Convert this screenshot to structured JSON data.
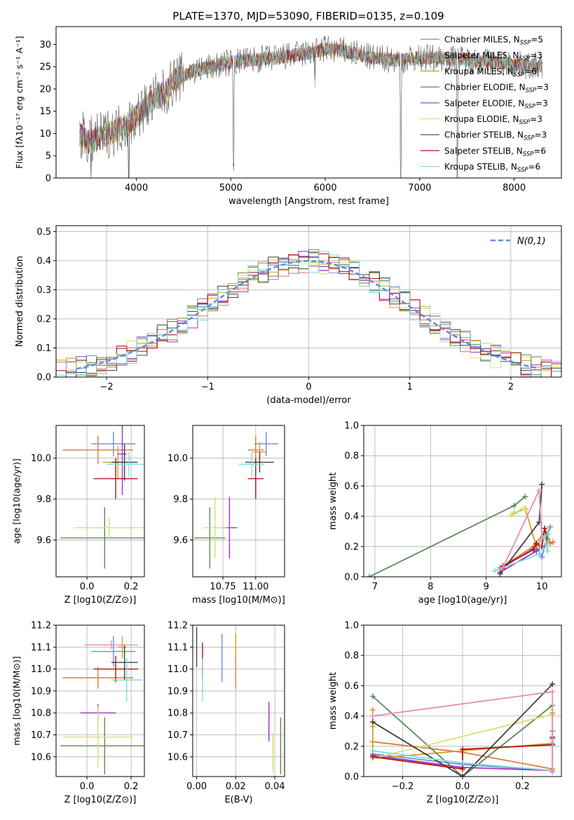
{
  "figure": {
    "title": "PLATE=1370, MJD=53090, FIBERID=0135, z=0.109"
  },
  "legend_entries": [
    {
      "base": "Chabrier MILES, N",
      "sub": "SSP",
      "tail": "=5",
      "color": "#6b8fd6"
    },
    {
      "base": "Salpeter MILES, N",
      "sub": "SSP",
      "tail": "=3",
      "color": "#e07b39"
    },
    {
      "base": "Kroupa MILES, N",
      "sub": "SSP",
      "tail": "=6",
      "color": "#c9a227"
    },
    {
      "base": "Chabrier ELODIE, N",
      "sub": "SSP",
      "tail": "=3",
      "color": "#5a8a5a"
    },
    {
      "base": "Salpeter ELODIE, N",
      "sub": "SSP",
      "tail": "=3",
      "color": "#a030c0"
    },
    {
      "base": "Kroupa ELODIE, N",
      "sub": "SSP",
      "tail": "=3",
      "color": "#d8e070"
    },
    {
      "base": "Chabrier STELIB, N",
      "sub": "SSP",
      "tail": "=3",
      "color": "#404040"
    },
    {
      "base": "Salpeter STELIB, N",
      "sub": "SSP",
      "tail": "=6",
      "color": "#b01010"
    },
    {
      "base": "Kroupa STELIB, N",
      "sub": "SSP",
      "tail": "=6",
      "color": "#7fdcdc"
    }
  ],
  "chart_data": [
    {
      "id": "spectrum",
      "type": "line",
      "xlabel": "wavelength [Angstrom, rest frame]",
      "ylabel": "Flux [fλ10⁻¹⁷ erg cm⁻² s⁻¹ A⁻¹]",
      "xlim": [
        3150,
        8500
      ],
      "ylim": [
        0,
        34
      ],
      "xticks": [
        4000,
        5000,
        6000,
        7000,
        8000
      ],
      "yticks": [
        0,
        5,
        10,
        15,
        20,
        25,
        30
      ],
      "continuum": {
        "x": [
          3400,
          3500,
          3700,
          3900,
          4000,
          4100,
          4200,
          4300,
          4400,
          4600,
          4800,
          5000,
          5200,
          5500,
          5800,
          6000,
          6200,
          6500,
          6800,
          7000,
          7200,
          7500,
          7800,
          8000,
          8300
        ],
        "y": [
          10,
          8,
          10,
          12,
          14,
          16,
          18,
          19,
          22,
          24,
          25,
          26,
          26.5,
          27,
          28,
          29,
          28.5,
          27,
          26.5,
          27,
          27,
          26.5,
          26,
          25.5,
          25
        ]
      },
      "absorption_features": [
        {
          "x": 3520,
          "depth": 10
        },
        {
          "x": 3920,
          "depth": 12
        },
        {
          "x": 5030,
          "depth": 22
        },
        {
          "x": 5890,
          "depth": 8
        },
        {
          "x": 6800,
          "depth": 27
        },
        {
          "x": 7400,
          "depth": 27
        }
      ]
    },
    {
      "id": "residuals",
      "type": "histogram",
      "xlabel": "(data-model)/error",
      "ylabel": "Normed distribution",
      "xlim": [
        -2.5,
        2.5
      ],
      "ylim": [
        0,
        0.52
      ],
      "xticks": [
        -2,
        -1,
        0,
        1,
        2
      ],
      "xtick_labels": [
        "−2",
        "−1",
        "0",
        "1",
        "2"
      ],
      "yticks": [
        0.0,
        0.1,
        0.2,
        0.3,
        0.4,
        0.5
      ],
      "ytick_labels": [
        "0.0",
        "0.1",
        "0.2",
        "0.3",
        "0.4",
        "0.5"
      ],
      "reference_curve": {
        "label": "N(0,1)",
        "color": "#5b8fd6",
        "style": "dashed"
      },
      "bin_width": 0.1
    },
    {
      "id": "age_vs_Z",
      "type": "errorbar",
      "xlabel": "Z [log10(Z/Z⊙)]",
      "ylabel": "age [log10(age/yr)]",
      "xlim": [
        -0.14,
        0.26
      ],
      "ylim": [
        9.42,
        10.16
      ],
      "xticks": [
        0.0,
        0.2
      ],
      "xtick_labels": [
        "0.0",
        "0.2"
      ],
      "yticks": [
        9.6,
        9.8,
        10.0
      ],
      "ytick_labels": [
        "9.6",
        "9.8",
        "10.0"
      ],
      "points": [
        {
          "x": 0.12,
          "y": 10.07,
          "xerr": 0.1,
          "yerr": 0.06,
          "c": 0
        },
        {
          "x": 0.05,
          "y": 10.04,
          "xerr": 0.16,
          "yerr": 0.07,
          "c": 1
        },
        {
          "x": 0.14,
          "y": 9.98,
          "xerr": 0.07,
          "yerr": 0.08,
          "c": 2
        },
        {
          "x": 0.08,
          "y": 9.61,
          "xerr": 0.2,
          "yerr": 0.15,
          "c": 3
        },
        {
          "x": 0.16,
          "y": 10.02,
          "xerr": 0.02,
          "yerr": 0.2,
          "c": 4
        },
        {
          "x": 0.1,
          "y": 9.66,
          "xerr": 0.16,
          "yerr": 0.05,
          "c": 5
        },
        {
          "x": 0.17,
          "y": 9.98,
          "xerr": 0.06,
          "yerr": 0.09,
          "c": 6
        },
        {
          "x": 0.13,
          "y": 9.9,
          "xerr": 0.1,
          "yerr": 0.1,
          "c": 7
        },
        {
          "x": 0.19,
          "y": 9.97,
          "xerr": 0.1,
          "yerr": 0.06,
          "c": 8
        }
      ]
    },
    {
      "id": "age_vs_mass",
      "type": "errorbar",
      "xlabel": "mass [log10(M/M⊙)]",
      "ylabel": "",
      "xlim": [
        10.52,
        11.22
      ],
      "ylim": [
        9.42,
        10.16
      ],
      "xticks": [
        10.75,
        11.0
      ],
      "xtick_labels": [
        "10.75",
        "11.00"
      ],
      "yticks": [
        9.6,
        9.8,
        10.0
      ],
      "ytick_labels": [
        "9.6",
        "9.8",
        "10.0"
      ],
      "points": [
        {
          "x": 11.08,
          "y": 10.07,
          "xerr": 0.09,
          "yerr": 0.06,
          "c": 0
        },
        {
          "x": 11.0,
          "y": 10.04,
          "xerr": 0.06,
          "yerr": 0.07,
          "c": 1
        },
        {
          "x": 11.03,
          "y": 10.03,
          "xerr": 0.05,
          "yerr": 0.05,
          "c": 2
        },
        {
          "x": 10.65,
          "y": 9.61,
          "xerr": 0.12,
          "yerr": 0.15,
          "c": 3
        },
        {
          "x": 10.8,
          "y": 9.66,
          "xerr": 0.06,
          "yerr": 0.15,
          "c": 4
        },
        {
          "x": 10.69,
          "y": 9.66,
          "xerr": 0.09,
          "yerr": 0.15,
          "c": 5
        },
        {
          "x": 11.03,
          "y": 9.98,
          "xerr": 0.11,
          "yerr": 0.05,
          "c": 6
        },
        {
          "x": 11.0,
          "y": 9.9,
          "xerr": 0.06,
          "yerr": 0.1,
          "c": 7
        },
        {
          "x": 10.97,
          "y": 9.97,
          "xerr": 0.1,
          "yerr": 0.06,
          "c": 8
        }
      ]
    },
    {
      "id": "mass_weight_vs_age",
      "type": "line",
      "xlabel": "age [log10(age/yr)]",
      "ylabel": "mass weight",
      "xlim": [
        6.8,
        10.35
      ],
      "ylim": [
        0,
        1.0
      ],
      "xticks": [
        7,
        8,
        9,
        10
      ],
      "xtick_labels": [
        "7",
        "8",
        "9",
        "10"
      ],
      "yticks": [
        0,
        0.2,
        0.4,
        0.6,
        0.8,
        1.0
      ],
      "ytick_labels": [
        "0.0",
        "0.2",
        "0.4",
        "0.6",
        "0.8",
        "1.0"
      ],
      "series": [
        {
          "c": 0,
          "x": [
            9.25,
            9.9,
            10.0,
            10.1,
            10.15
          ],
          "y": [
            0.05,
            0.2,
            0.13,
            0.28,
            0.33
          ]
        },
        {
          "c": 1,
          "x": [
            9.25,
            9.85,
            10.05,
            10.15,
            10.2
          ],
          "y": [
            0.06,
            0.2,
            0.3,
            0.22,
            0.23
          ]
        },
        {
          "c": 2,
          "x": [
            9.5,
            9.7,
            9.9,
            10.0,
            10.05,
            10.1
          ],
          "y": [
            0.42,
            0.45,
            0.2,
            0.25,
            0.3,
            0.22
          ]
        },
        {
          "c": 3,
          "x": [
            6.9,
            9.5,
            9.7
          ],
          "y": [
            0.0,
            0.47,
            0.53
          ]
        },
        {
          "c": 4,
          "x": [
            9.25,
            9.9,
            10.0
          ],
          "y": [
            0.03,
            0.17,
            0.2
          ]
        },
        {
          "c": 5,
          "x": [
            9.45,
            9.65,
            9.7
          ],
          "y": [
            0.41,
            0.45,
            0.44
          ]
        },
        {
          "c": 6,
          "x": [
            9.25,
            9.95,
            10.0
          ],
          "y": [
            0.02,
            0.36,
            0.61
          ]
        },
        {
          "c": 7,
          "x": [
            9.3,
            9.85,
            9.9,
            10.0,
            10.05,
            10.1
          ],
          "y": [
            0.07,
            0.18,
            0.22,
            0.2,
            0.32,
            0.25
          ]
        },
        {
          "c": 8,
          "x": [
            9.15,
            9.95,
            10.0,
            10.05,
            10.1,
            10.12
          ],
          "y": [
            0.04,
            0.15,
            0.25,
            0.27,
            0.17,
            0.28
          ]
        },
        {
          "c": 9,
          "x": [
            9.3,
            9.95,
            10.0
          ],
          "y": [
            0.06,
            0.57,
            0.25
          ]
        }
      ]
    },
    {
      "id": "mass_vs_Z",
      "type": "errorbar",
      "xlabel": "Z [log10(Z/Z⊙)]",
      "ylabel": "mass [log10(M/M⊙)]",
      "xlim": [
        -0.14,
        0.26
      ],
      "ylim": [
        10.51,
        11.2
      ],
      "xticks": [
        0.0,
        0.2
      ],
      "xtick_labels": [
        "0.0",
        "0.2"
      ],
      "yticks": [
        10.6,
        10.7,
        10.8,
        10.9,
        11.0,
        11.1,
        11.2
      ],
      "ytick_labels": [
        "10.6",
        "10.7",
        "10.8",
        "10.9",
        "11.0",
        "11.1",
        "11.2"
      ],
      "points": [
        {
          "x": 0.12,
          "y": 11.08,
          "xerr": 0.1,
          "yerr": 0.07,
          "c": 0
        },
        {
          "x": 0.05,
          "y": 10.96,
          "xerr": 0.16,
          "yerr": 0.05,
          "c": 1
        },
        {
          "x": 0.16,
          "y": 11.1,
          "xerr": 0.02,
          "yerr": 0.05,
          "c": 2
        },
        {
          "x": 0.08,
          "y": 10.65,
          "xerr": 0.2,
          "yerr": 0.13,
          "c": 3
        },
        {
          "x": 0.05,
          "y": 10.8,
          "xerr": 0.08,
          "yerr": 0.04,
          "c": 4
        },
        {
          "x": 0.05,
          "y": 10.69,
          "xerr": 0.16,
          "yerr": 0.14,
          "c": 5
        },
        {
          "x": 0.17,
          "y": 11.03,
          "xerr": 0.06,
          "yerr": 0.08,
          "c": 6
        },
        {
          "x": 0.13,
          "y": 11.0,
          "xerr": 0.1,
          "yerr": 0.06,
          "c": 7
        },
        {
          "x": 0.18,
          "y": 10.95,
          "xerr": 0.07,
          "yerr": 0.1,
          "c": 8
        },
        {
          "x": 0.11,
          "y": 11.11,
          "xerr": 0.12,
          "yerr": 0.02,
          "c": 9
        }
      ]
    },
    {
      "id": "mass_vs_EBV",
      "type": "errorbar",
      "xlabel": "E(B-V)",
      "ylabel": "",
      "xlim": [
        -0.002,
        0.045
      ],
      "ylim": [
        10.51,
        11.2
      ],
      "xticks": [
        0.0,
        0.02,
        0.04
      ],
      "xtick_labels": [
        "0.00",
        "0.02",
        "0.04"
      ],
      "yticks": [
        10.6,
        10.7,
        10.8,
        10.9,
        11.0,
        11.1,
        11.2
      ],
      "ytick_labels": [
        "10.6",
        "10.7",
        "10.8",
        "10.9",
        "11.0",
        "11.1",
        "11.2"
      ],
      "points": [
        {
          "x": 0.013,
          "y": 11.05,
          "xerr": 0.0,
          "yerr": 0.11,
          "c": 0
        },
        {
          "x": 0.02,
          "y": 10.99,
          "xerr": 0.0,
          "yerr": 0.08,
          "c": 1
        },
        {
          "x": 0.02,
          "y": 11.11,
          "xerr": 0.0,
          "yerr": 0.05,
          "c": 2
        },
        {
          "x": 0.043,
          "y": 10.65,
          "xerr": 0.0,
          "yerr": 0.13,
          "c": 3
        },
        {
          "x": 0.037,
          "y": 10.76,
          "xerr": 0.0,
          "yerr": 0.09,
          "c": 4
        },
        {
          "x": 0.039,
          "y": 10.62,
          "xerr": 0.0,
          "yerr": 0.09,
          "c": 5
        },
        {
          "x": 0.0,
          "y": 11.1,
          "xerr": 0.0,
          "yerr": 0.09,
          "c": 6
        },
        {
          "x": 0.003,
          "y": 11.04,
          "xerr": 0.0,
          "yerr": 0.08,
          "c": 7
        },
        {
          "x": 0.003,
          "y": 10.95,
          "xerr": 0.0,
          "yerr": 0.1,
          "c": 8
        }
      ]
    },
    {
      "id": "mass_weight_vs_Z",
      "type": "line",
      "xlabel": "Z [log10(Z/Z⊙)]",
      "ylabel": "mass weight",
      "xlim": [
        -0.33,
        0.33
      ],
      "ylim": [
        0,
        1.0
      ],
      "xticks": [
        -0.2,
        0.0,
        0.2
      ],
      "xtick_labels": [
        "−0.2",
        "0.0",
        "0.2"
      ],
      "yticks": [
        0,
        0.2,
        0.4,
        0.6,
        0.8,
        1.0
      ],
      "ytick_labels": [
        "0.0",
        "0.2",
        "0.4",
        "0.6",
        "0.8",
        "1.0"
      ],
      "series": [
        {
          "c": 0,
          "x": [
            -0.3,
            0.0,
            0.3,
            0.3,
            0.3
          ],
          "y": [
            0.15,
            0.08,
            0.04,
            0.25,
            0.3
          ]
        },
        {
          "c": 1,
          "x": [
            -0.3,
            0.0,
            0.3
          ],
          "y": [
            0.23,
            0.16,
            0.05
          ]
        },
        {
          "c": 2,
          "x": [
            -0.3,
            -0.3,
            -0.3,
            0.3,
            0.3,
            0.3
          ],
          "y": [
            0.44,
            0.33,
            0.12,
            0.22,
            0.41,
            0.42
          ]
        },
        {
          "c": 3,
          "x": [
            -0.3,
            0.0,
            0.3
          ],
          "y": [
            0.53,
            0.0,
            0.47
          ]
        },
        {
          "c": 4,
          "x": [
            -0.3,
            0.0,
            0.3
          ],
          "y": [
            0.14,
            0.06,
            0.04
          ]
        },
        {
          "c": 5,
          "x": [
            -0.3,
            0.3,
            0.3
          ],
          "y": [
            0.12,
            0.41,
            0.44
          ]
        },
        {
          "c": 6,
          "x": [
            -0.3,
            0.0,
            0.3
          ],
          "y": [
            0.36,
            0.0,
            0.61
          ]
        },
        {
          "c": 7,
          "x": [
            -0.3,
            0.0,
            0.0,
            0.3,
            0.3
          ],
          "y": [
            0.13,
            0.05,
            0.18,
            0.21,
            0.26
          ]
        },
        {
          "c": 8,
          "x": [
            -0.3,
            0.0,
            0.3,
            0.3
          ],
          "y": [
            0.17,
            0.09,
            0.04,
            0.2
          ]
        },
        {
          "c": 9,
          "x": [
            -0.3,
            0.3,
            0.3
          ],
          "y": [
            0.4,
            0.56,
            0.03
          ]
        }
      ]
    }
  ],
  "palette": [
    "#6b8fd6",
    "#e07b39",
    "#c9a227",
    "#5a8a5a",
    "#a030c0",
    "#d8e070",
    "#404040",
    "#b01010",
    "#7fdcdc",
    "#e88ab8"
  ]
}
